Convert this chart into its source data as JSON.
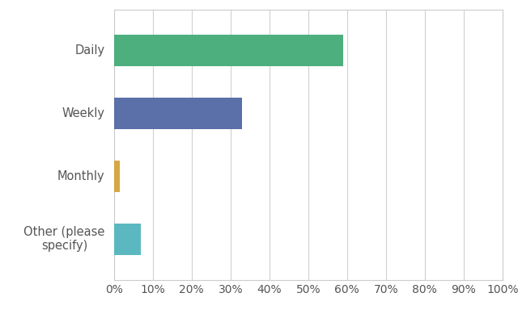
{
  "categories": [
    "Daily",
    "Weekly",
    "Monthly",
    "Other (please\nspecify)"
  ],
  "values": [
    59,
    33,
    1.5,
    7
  ],
  "bar_colors": [
    "#4caf7d",
    "#5b6fa8",
    "#d4a843",
    "#5bb8c1"
  ],
  "background_color": "#ffffff",
  "plot_bg_color": "#ffffff",
  "xlim": [
    0,
    100
  ],
  "xticks": [
    0,
    10,
    20,
    30,
    40,
    50,
    60,
    70,
    80,
    90,
    100
  ],
  "xtick_labels": [
    "0%",
    "10%",
    "20%",
    "30%",
    "40%",
    "50%",
    "60%",
    "70%",
    "80%",
    "90%",
    "100%"
  ],
  "ylabel_fontsize": 10.5,
  "xlabel_fontsize": 10,
  "bar_height": 0.5,
  "grid_color": "#d0d0d0",
  "spine_color": "#cccccc",
  "text_color": "#555555"
}
